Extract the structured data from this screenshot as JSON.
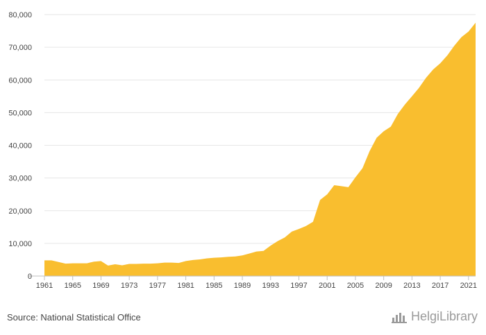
{
  "chart_data": {
    "type": "area",
    "x": [
      1961,
      1962,
      1963,
      1964,
      1965,
      1966,
      1967,
      1968,
      1969,
      1970,
      1971,
      1972,
      1973,
      1974,
      1975,
      1976,
      1977,
      1978,
      1979,
      1980,
      1981,
      1982,
      1983,
      1984,
      1985,
      1986,
      1987,
      1988,
      1989,
      1990,
      1991,
      1992,
      1993,
      1994,
      1995,
      1996,
      1997,
      1998,
      1999,
      2000,
      2001,
      2002,
      2003,
      2004,
      2005,
      2006,
      2007,
      2008,
      2009,
      2010,
      2011,
      2012,
      2013,
      2014,
      2015,
      2016,
      2017,
      2018,
      2019,
      2020,
      2021,
      2022
    ],
    "values": [
      4800,
      4800,
      4300,
      3800,
      3900,
      3900,
      3900,
      4400,
      4600,
      3200,
      3600,
      3300,
      3700,
      3700,
      3800,
      3800,
      3900,
      4100,
      4100,
      4000,
      4600,
      4900,
      5100,
      5400,
      5600,
      5700,
      5900,
      6000,
      6300,
      6900,
      7500,
      7700,
      9300,
      10700,
      11800,
      13600,
      14400,
      15300,
      16600,
      23300,
      25000,
      27800,
      27500,
      27200,
      30200,
      33000,
      38200,
      42300,
      44300,
      45700,
      49600,
      52500,
      55000,
      57600,
      60700,
      63200,
      65100,
      67500,
      70500,
      73100,
      74800,
      77500
    ],
    "xticks": [
      "1961",
      "1965",
      "1969",
      "1973",
      "1977",
      "1981",
      "1985",
      "1989",
      "1993",
      "1997",
      "2001",
      "2005",
      "2009",
      "2013",
      "2017",
      "2021"
    ],
    "yticks": [
      "0",
      "10,000",
      "20,000",
      "30,000",
      "40,000",
      "50,000",
      "60,000",
      "70,000",
      "80,000"
    ],
    "ylim": [
      0,
      80000
    ],
    "xlim": [
      1961,
      2022
    ],
    "grid": true,
    "legend": "none"
  },
  "colors": {
    "area": "#F9BE2F",
    "grid": "#e6e6e6",
    "axis": "#bfbfbf",
    "text": "#444444",
    "brand": "#9a9a9a"
  },
  "footer": {
    "source": "Source: National Statistical Office",
    "brand": "HelgiLibrary"
  }
}
